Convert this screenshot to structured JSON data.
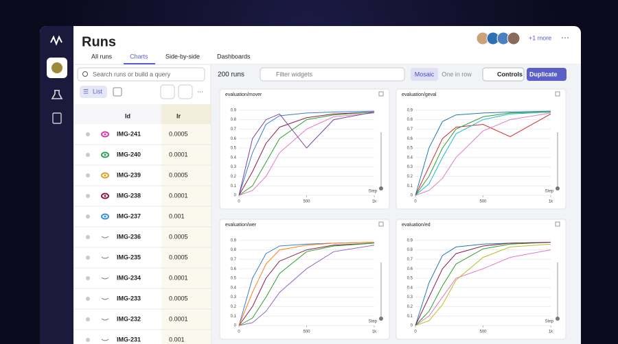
{
  "header": {
    "title": "Runs",
    "tabs": [
      "All runs",
      "Charts",
      "Side-by-side",
      "Dashboards"
    ],
    "more": "+1 more"
  },
  "sidebar": {},
  "search": {
    "placeholder": "Search runs or build a query"
  },
  "view": {
    "list": "List"
  },
  "table": {
    "columns": [
      "Id",
      "lr"
    ],
    "rows": [
      {
        "id": "IMG-241",
        "lr": 0.0005,
        "color": "#d63ca8"
      },
      {
        "id": "IMG-240",
        "lr": 0.0001,
        "color": "#2aa05a"
      },
      {
        "id": "IMG-239",
        "lr": 0.0005,
        "color": "#d9a520"
      },
      {
        "id": "IMG-238",
        "lr": 0.0001,
        "color": "#8b1a3a"
      },
      {
        "id": "IMG-237",
        "lr": 0.001,
        "color": "#3a8ee0"
      },
      {
        "id": "IMG-236",
        "lr": 0.0005
      },
      {
        "id": "IMG-235",
        "lr": 0.0005
      },
      {
        "id": "IMG-234",
        "lr": 0.0001
      },
      {
        "id": "IMG-233",
        "lr": 0.0005
      },
      {
        "id": "IMG-232",
        "lr": 0.0001
      },
      {
        "id": "IMG-231",
        "lr": 0.001
      }
    ]
  },
  "toolbar": {
    "run_count": "200 runs",
    "filter": "Filter widgets",
    "mosaic": "Mosaic",
    "one_in_row": "One in row",
    "controls": "Controls",
    "duplicate": "Duplicate"
  },
  "chart_data": [
    {
      "type": "line",
      "title": "evaluation/mover",
      "xlabel": "Step",
      "x": [
        0,
        100,
        200,
        300,
        500,
        700,
        1000
      ],
      "xlim": [
        0,
        1000
      ],
      "ylim": [
        0,
        0.92
      ],
      "xticks": [
        0,
        500,
        {
          "value": 1000,
          "label": "1k"
        }
      ],
      "yticks": [
        0,
        0.1,
        0.2,
        0.3,
        0.4,
        0.5,
        0.6,
        0.7,
        0.8,
        0.9
      ],
      "series": [
        {
          "color": "#8b1a4a",
          "values": [
            0,
            0.25,
            0.55,
            0.72,
            0.82,
            0.86,
            0.88
          ]
        },
        {
          "color": "#3a7bd5",
          "values": [
            0,
            0.45,
            0.75,
            0.84,
            0.87,
            0.88,
            0.89
          ]
        },
        {
          "color": "#2ca02c",
          "values": [
            0,
            0.1,
            0.35,
            0.6,
            0.8,
            0.85,
            0.88
          ]
        },
        {
          "color": "#e377c2",
          "values": [
            0,
            0.05,
            0.2,
            0.45,
            0.7,
            0.83,
            0.87
          ]
        },
        {
          "color": "#7b3fa0",
          "values": [
            0,
            0.6,
            0.8,
            0.86,
            0.5,
            0.8,
            0.88
          ]
        }
      ]
    },
    {
      "type": "line",
      "title": "evaluation/geval",
      "xlabel": "Step",
      "x": [
        0,
        100,
        200,
        300,
        500,
        700,
        1000
      ],
      "xlim": [
        0,
        1000
      ],
      "ylim": [
        0,
        0.92
      ],
      "xticks": [
        0,
        500,
        {
          "value": 1000,
          "label": "1k"
        }
      ],
      "yticks": [
        0,
        0.1,
        0.2,
        0.3,
        0.4,
        0.5,
        0.6,
        0.7,
        0.8,
        0.9
      ],
      "series": [
        {
          "color": "#d62728",
          "values": [
            0,
            0.3,
            0.6,
            0.72,
            0.75,
            0.62,
            0.86
          ]
        },
        {
          "color": "#1f77b4",
          "values": [
            0,
            0.5,
            0.78,
            0.85,
            0.87,
            0.88,
            0.89
          ]
        },
        {
          "color": "#17becf",
          "values": [
            0,
            0.12,
            0.4,
            0.65,
            0.8,
            0.86,
            0.88
          ]
        },
        {
          "color": "#e377c2",
          "values": [
            0,
            0.05,
            0.18,
            0.4,
            0.68,
            0.8,
            0.87
          ]
        },
        {
          "color": "#2ca02c",
          "values": [
            0,
            0.2,
            0.5,
            0.7,
            0.83,
            0.87,
            0.88
          ]
        }
      ]
    },
    {
      "type": "line",
      "title": "evaluation/wer",
      "xlabel": "Step",
      "x": [
        0,
        100,
        200,
        300,
        500,
        700,
        1000
      ],
      "xlim": [
        0,
        1000
      ],
      "ylim": [
        0,
        0.92
      ],
      "xticks": [
        0,
        500,
        {
          "value": 1000,
          "label": "1k"
        }
      ],
      "yticks": [
        0,
        0.1,
        0.2,
        0.3,
        0.4,
        0.5,
        0.6,
        0.7,
        0.8,
        0.9
      ],
      "series": [
        {
          "color": "#8b1a4a",
          "values": [
            0,
            0.2,
            0.5,
            0.68,
            0.8,
            0.85,
            0.87
          ]
        },
        {
          "color": "#3a7bd5",
          "values": [
            0,
            0.5,
            0.76,
            0.84,
            0.86,
            0.87,
            0.88
          ]
        },
        {
          "color": "#2ca02c",
          "values": [
            0,
            0.08,
            0.3,
            0.55,
            0.78,
            0.84,
            0.87
          ]
        },
        {
          "color": "#9467bd",
          "values": [
            0,
            0.03,
            0.15,
            0.35,
            0.6,
            0.78,
            0.85
          ]
        },
        {
          "color": "#ff7f0e",
          "values": [
            0,
            0.35,
            0.65,
            0.8,
            0.85,
            0.87,
            0.88
          ]
        }
      ]
    },
    {
      "type": "line",
      "title": "evaluation/ed",
      "xlabel": "Step",
      "x": [
        0,
        100,
        200,
        300,
        500,
        700,
        1000
      ],
      "xlim": [
        0,
        1000
      ],
      "ylim": [
        0,
        0.92
      ],
      "xticks": [
        0,
        500,
        {
          "value": 1000,
          "label": "1k"
        }
      ],
      "yticks": [
        0,
        0.1,
        0.2,
        0.3,
        0.4,
        0.5,
        0.6,
        0.7,
        0.8,
        0.9
      ],
      "series": [
        {
          "color": "#e377c2",
          "values": [
            0,
            0.1,
            0.3,
            0.5,
            0.6,
            0.72,
            0.8
          ]
        },
        {
          "color": "#1f77b4",
          "values": [
            0,
            0.45,
            0.74,
            0.83,
            0.86,
            0.87,
            0.88
          ]
        },
        {
          "color": "#2ca02c",
          "values": [
            0,
            0.15,
            0.42,
            0.65,
            0.81,
            0.86,
            0.88
          ]
        },
        {
          "color": "#8b1a4a",
          "values": [
            0,
            0.3,
            0.6,
            0.76,
            0.84,
            0.87,
            0.88
          ]
        },
        {
          "color": "#bcbd22",
          "values": [
            0,
            0.05,
            0.22,
            0.48,
            0.72,
            0.83,
            0.86
          ]
        }
      ]
    }
  ]
}
